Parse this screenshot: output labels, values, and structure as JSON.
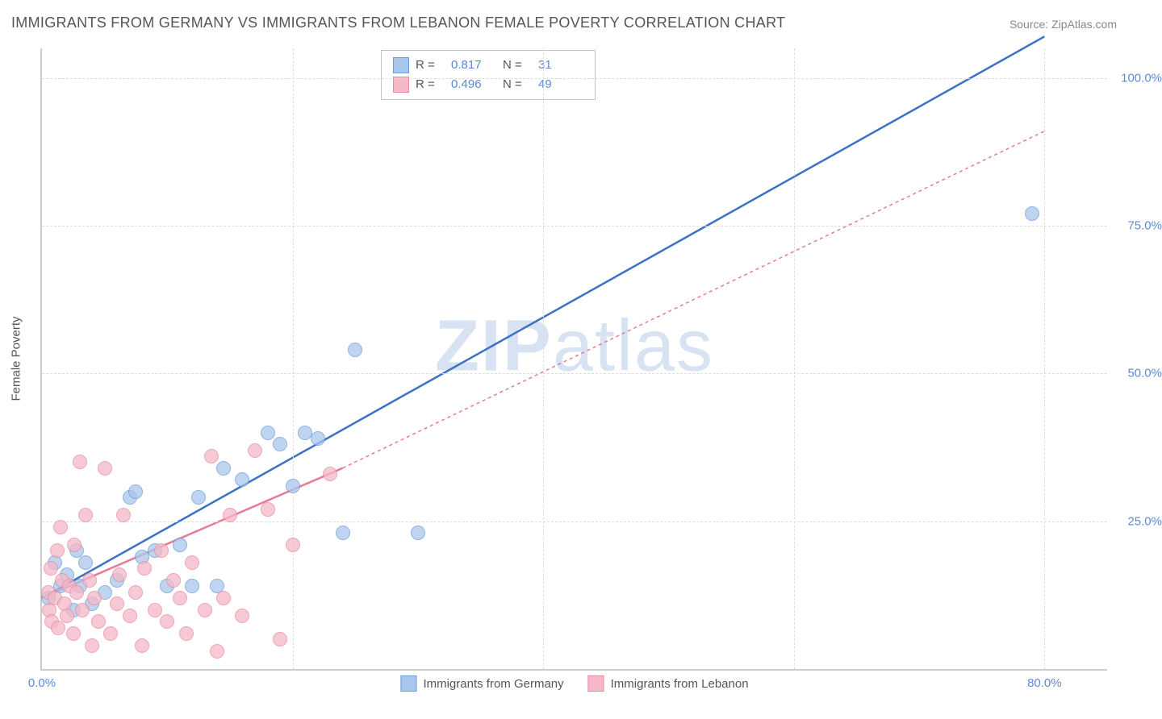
{
  "title": "IMMIGRANTS FROM GERMANY VS IMMIGRANTS FROM LEBANON FEMALE POVERTY CORRELATION CHART",
  "source": "Source: ZipAtlas.com",
  "watermark": {
    "bold": "ZIP",
    "rest": "atlas"
  },
  "chart": {
    "type": "scatter",
    "ylabel": "Female Poverty",
    "xlim": [
      0,
      85
    ],
    "ylim": [
      0,
      105
    ],
    "xticks": [
      {
        "v": 0,
        "label": "0.0%"
      },
      {
        "v": 80,
        "label": "80.0%"
      }
    ],
    "yticks": [
      {
        "v": 25,
        "label": "25.0%"
      },
      {
        "v": 50,
        "label": "50.0%"
      },
      {
        "v": 75,
        "label": "75.0%"
      },
      {
        "v": 100,
        "label": "100.0%"
      }
    ],
    "xgrid": [
      20,
      40,
      60,
      80
    ],
    "grid_color": "#dddddd",
    "background_color": "#ffffff",
    "series": [
      {
        "name": "Immigrants from Germany",
        "fill": "#a9c6ec",
        "stroke": "#6a9bd8",
        "line_color": "#3b72c4",
        "line_width": 2.5,
        "line_dash": "none",
        "marker_radius": 8,
        "R": "0.817",
        "N": "31",
        "points": [
          [
            0.5,
            12
          ],
          [
            1,
            18
          ],
          [
            1.5,
            14
          ],
          [
            2,
            16
          ],
          [
            2.5,
            10
          ],
          [
            2.8,
            20
          ],
          [
            3,
            14
          ],
          [
            3.5,
            18
          ],
          [
            4,
            11
          ],
          [
            5,
            13
          ],
          [
            6,
            15
          ],
          [
            7,
            29
          ],
          [
            7.5,
            30
          ],
          [
            8,
            19
          ],
          [
            9,
            20
          ],
          [
            10,
            14
          ],
          [
            11,
            21
          ],
          [
            12,
            14
          ],
          [
            12.5,
            29
          ],
          [
            14,
            14
          ],
          [
            14.5,
            34
          ],
          [
            16,
            32
          ],
          [
            18,
            40
          ],
          [
            19,
            38
          ],
          [
            20,
            31
          ],
          [
            21,
            40
          ],
          [
            22,
            39
          ],
          [
            24,
            23
          ],
          [
            25,
            54
          ],
          [
            30,
            23
          ],
          [
            79,
            77
          ]
        ],
        "trend": {
          "x1": 0,
          "y1": 12,
          "x2": 80,
          "y2": 107,
          "dash_ext": false
        }
      },
      {
        "name": "Immigrants from Lebanon",
        "fill": "#f4b8c6",
        "stroke": "#e88aa0",
        "line_color": "#e57b94",
        "line_width": 2.5,
        "line_dash": "4,4",
        "marker_radius": 8,
        "R": "0.496",
        "N": "49",
        "points": [
          [
            0.5,
            13
          ],
          [
            0.6,
            10
          ],
          [
            0.7,
            17
          ],
          [
            0.8,
            8
          ],
          [
            1,
            12
          ],
          [
            1.2,
            20
          ],
          [
            1.3,
            7
          ],
          [
            1.5,
            24
          ],
          [
            1.6,
            15
          ],
          [
            1.8,
            11
          ],
          [
            2,
            9
          ],
          [
            2.2,
            14
          ],
          [
            2.5,
            6
          ],
          [
            2.6,
            21
          ],
          [
            2.8,
            13
          ],
          [
            3,
            35
          ],
          [
            3.2,
            10
          ],
          [
            3.5,
            26
          ],
          [
            3.8,
            15
          ],
          [
            4,
            4
          ],
          [
            4.2,
            12
          ],
          [
            4.5,
            8
          ],
          [
            5,
            34
          ],
          [
            5.5,
            6
          ],
          [
            6,
            11
          ],
          [
            6.2,
            16
          ],
          [
            6.5,
            26
          ],
          [
            7,
            9
          ],
          [
            7.5,
            13
          ],
          [
            8,
            4
          ],
          [
            8.2,
            17
          ],
          [
            9,
            10
          ],
          [
            9.5,
            20
          ],
          [
            10,
            8
          ],
          [
            10.5,
            15
          ],
          [
            11,
            12
          ],
          [
            11.5,
            6
          ],
          [
            12,
            18
          ],
          [
            13,
            10
          ],
          [
            13.5,
            36
          ],
          [
            14,
            3
          ],
          [
            14.5,
            12
          ],
          [
            15,
            26
          ],
          [
            16,
            9
          ],
          [
            17,
            37
          ],
          [
            18,
            27
          ],
          [
            19,
            5
          ],
          [
            20,
            21
          ],
          [
            23,
            33
          ]
        ],
        "trend": {
          "x1": 0,
          "y1": 12,
          "x2": 24,
          "y2": 34,
          "dash_ext": true,
          "ext_x2": 80,
          "ext_y2": 91
        }
      }
    ],
    "legend_bottom": [
      {
        "label": "Immigrants from Germany",
        "fill": "#a9c6ec",
        "stroke": "#6a9bd8"
      },
      {
        "label": "Immigrants from Lebanon",
        "fill": "#f4b8c6",
        "stroke": "#e88aa0"
      }
    ]
  }
}
